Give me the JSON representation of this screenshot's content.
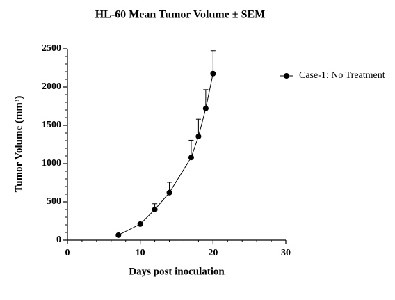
{
  "chart_data": {
    "type": "line",
    "title": "HL-60 Mean Tumor Volume ± SEM",
    "x_label": "Days post inoculation",
    "y_label": "Tumor Volume (mm³)",
    "x": [
      7,
      10,
      12,
      14,
      17,
      18,
      19,
      20
    ],
    "series": [
      {
        "name": "Case-1: No Treatment",
        "color": "#000000",
        "values": [
          65,
          210,
          400,
          620,
          1080,
          1355,
          1720,
          2175
        ],
        "errors": [
          10,
          15,
          75,
          135,
          225,
          225,
          245,
          300
        ]
      }
    ],
    "xlim": [
      0,
      30
    ],
    "xticks": [
      0,
      10,
      20,
      30
    ],
    "ylim": [
      0,
      2500
    ],
    "yticks": [
      0,
      500,
      1000,
      1500,
      2000,
      2500
    ],
    "grid": false,
    "legend": "right"
  }
}
